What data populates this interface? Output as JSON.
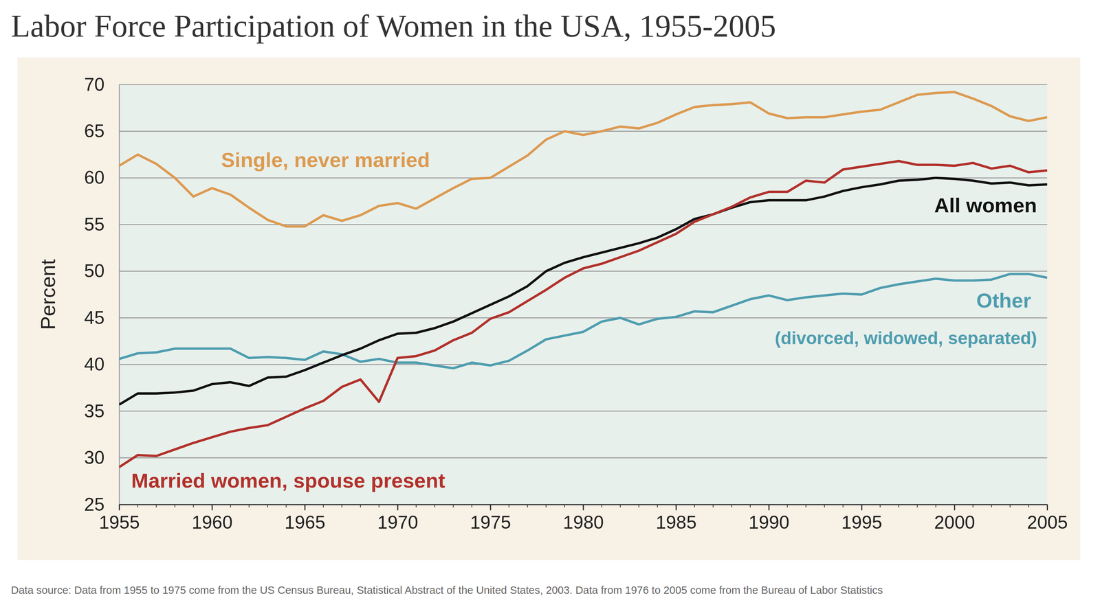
{
  "chart_data": {
    "type": "line",
    "title": "Labor Force Participation of Women in the USA, 1955-2005",
    "y_label": "Percent",
    "source": "Data source: Data from 1955 to 1975 come from the US Census Bureau, Statistical Abstract of the United States, 2003. Data from 1976 to 2005 come from the Bureau of Labor Statistics",
    "annotations": [
      "(divorced, widowed, separated)"
    ],
    "x": [
      1955,
      1956,
      1957,
      1958,
      1959,
      1960,
      1961,
      1962,
      1963,
      1964,
      1965,
      1966,
      1967,
      1968,
      1969,
      1970,
      1971,
      1972,
      1973,
      1974,
      1975,
      1976,
      1977,
      1978,
      1979,
      1980,
      1981,
      1982,
      1983,
      1984,
      1985,
      1986,
      1987,
      1988,
      1989,
      1990,
      1991,
      1992,
      1993,
      1994,
      1995,
      1996,
      1997,
      1998,
      1999,
      2000,
      2001,
      2002,
      2003,
      2004,
      2005
    ],
    "xlim": [
      1955,
      2005
    ],
    "xticks": [
      1955,
      1960,
      1965,
      1970,
      1975,
      1980,
      1985,
      1990,
      1995,
      2000,
      2005
    ],
    "ylim": [
      25,
      70
    ],
    "yticks": [
      25,
      30,
      35,
      40,
      45,
      50,
      55,
      60,
      65,
      70
    ],
    "grid": true,
    "series": [
      {
        "name": "Other",
        "color": "#4e9daf",
        "values": [
          40.6,
          41.2,
          41.3,
          41.7,
          41.7,
          41.7,
          41.7,
          40.7,
          40.8,
          40.7,
          40.5,
          41.4,
          41.1,
          40.3,
          40.6,
          40.2,
          40.2,
          39.9,
          39.6,
          40.2,
          39.9,
          40.4,
          41.5,
          42.7,
          43.1,
          43.5,
          44.6,
          45.0,
          44.3,
          44.9,
          45.1,
          45.7,
          45.6,
          46.3,
          47.0,
          47.4,
          46.9,
          47.2,
          47.4,
          47.6,
          47.5,
          48.2,
          48.6,
          48.9,
          49.2,
          49.0,
          49.0,
          49.1,
          49.7,
          49.7,
          49.3
        ]
      },
      {
        "name": "Single, never married",
        "color": "#dc9a50",
        "values": [
          61.3,
          62.5,
          61.5,
          60.0,
          58.0,
          58.9,
          58.2,
          56.8,
          55.5,
          54.8,
          54.8,
          56.0,
          55.4,
          56.0,
          57.0,
          57.3,
          56.7,
          57.8,
          58.9,
          59.9,
          60.0,
          61.2,
          62.4,
          64.1,
          65.0,
          64.6,
          65.0,
          65.5,
          65.3,
          65.9,
          66.8,
          67.6,
          67.8,
          67.9,
          68.1,
          66.9,
          66.4,
          66.5,
          66.5,
          66.8,
          67.1,
          67.3,
          68.1,
          68.9,
          69.1,
          69.2,
          68.5,
          67.7,
          66.6,
          66.1,
          66.5
        ]
      },
      {
        "name": "All women",
        "color": "#111111",
        "values": [
          35.7,
          36.9,
          36.9,
          37.0,
          37.2,
          37.9,
          38.1,
          37.7,
          38.6,
          38.7,
          39.4,
          40.2,
          41.0,
          41.7,
          42.6,
          43.3,
          43.4,
          43.9,
          44.6,
          45.5,
          46.4,
          47.3,
          48.4,
          50.0,
          50.9,
          51.5,
          52.0,
          52.5,
          53.0,
          53.6,
          54.5,
          55.6,
          56.1,
          56.8,
          57.4,
          57.6,
          57.6,
          57.6,
          58.0,
          58.6,
          59.0,
          59.3,
          59.7,
          59.8,
          60.0,
          59.9,
          59.7,
          59.4,
          59.5,
          59.2,
          59.3
        ]
      },
      {
        "name": "Married women, spouse present",
        "color": "#b2302a",
        "values": [
          29.0,
          30.3,
          30.2,
          30.9,
          31.6,
          32.2,
          32.8,
          33.2,
          33.5,
          34.4,
          35.3,
          36.1,
          37.6,
          38.4,
          36.0,
          40.7,
          40.9,
          41.5,
          42.6,
          43.4,
          44.9,
          45.6,
          46.8,
          48.0,
          49.3,
          50.3,
          50.8,
          51.5,
          52.2,
          53.1,
          54.0,
          55.3,
          56.1,
          56.9,
          57.9,
          58.5,
          58.5,
          59.7,
          59.5,
          60.9,
          61.2,
          61.5,
          61.8,
          61.4,
          61.4,
          61.3,
          61.6,
          61.0,
          61.3,
          60.6,
          60.8
        ]
      }
    ]
  }
}
